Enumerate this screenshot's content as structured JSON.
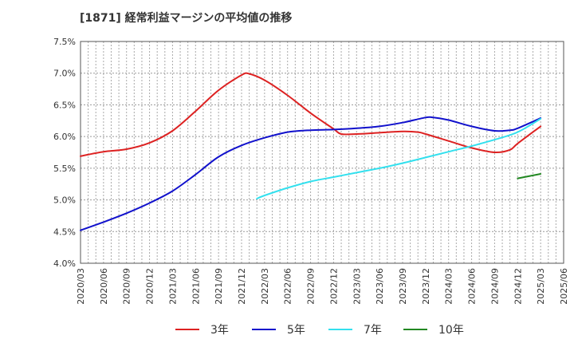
{
  "chart_data": {
    "type": "line",
    "title": "[1871]  経常利益マージンの平均値の推移",
    "xlabel": "",
    "ylabel": "",
    "ylim": [
      4.0,
      7.5
    ],
    "grid": true,
    "legend_placement": "bottom",
    "y_ticks": [
      "4.0%",
      "4.5%",
      "5.0%",
      "5.5%",
      "6.0%",
      "6.5%",
      "7.0%",
      "7.5%"
    ],
    "x_ticks": [
      "2020/03",
      "2020/06",
      "2020/09",
      "2020/12",
      "2021/03",
      "2021/06",
      "2021/09",
      "2021/12",
      "2022/03",
      "2022/06",
      "2022/09",
      "2022/12",
      "2023/03",
      "2023/06",
      "2023/09",
      "2023/12",
      "2024/03",
      "2024/06",
      "2024/09",
      "2024/12",
      "2025/03",
      "2025/06"
    ],
    "series": [
      {
        "name": "3年",
        "color": "#dd2222",
        "x": [
          "2020/03",
          "2020/06",
          "2020/09",
          "2020/12",
          "2021/03",
          "2021/06",
          "2021/09",
          "2021/12",
          "2022/01",
          "2022/03",
          "2022/06",
          "2022/09",
          "2022/12",
          "2023/01",
          "2023/03",
          "2023/06",
          "2023/09",
          "2023/11",
          "2023/12",
          "2024/03",
          "2024/06",
          "2024/09",
          "2024/11",
          "2024/12",
          "2025/03"
        ],
        "values": [
          5.69,
          5.76,
          5.8,
          5.9,
          6.09,
          6.4,
          6.73,
          6.97,
          6.99,
          6.89,
          6.65,
          6.37,
          6.12,
          6.04,
          6.04,
          6.06,
          6.08,
          6.07,
          6.04,
          5.93,
          5.82,
          5.75,
          5.79,
          5.89,
          6.16
        ]
      },
      {
        "name": "5年",
        "color": "#1111cc",
        "x": [
          "2020/03",
          "2020/06",
          "2020/09",
          "2020/12",
          "2021/03",
          "2021/06",
          "2021/09",
          "2021/12",
          "2022/03",
          "2022/06",
          "2022/09",
          "2022/12",
          "2023/03",
          "2023/06",
          "2023/09",
          "2023/12",
          "2024/01",
          "2024/03",
          "2024/06",
          "2024/09",
          "2024/11",
          "2024/12",
          "2025/03"
        ],
        "values": [
          4.52,
          4.65,
          4.79,
          4.95,
          5.14,
          5.4,
          5.68,
          5.86,
          5.98,
          6.07,
          6.1,
          6.11,
          6.13,
          6.16,
          6.22,
          6.3,
          6.3,
          6.26,
          6.16,
          6.09,
          6.1,
          6.13,
          6.29
        ]
      },
      {
        "name": "7年",
        "color": "#33e0ee",
        "x": [
          "2022/02",
          "2022/03",
          "2022/06",
          "2022/09",
          "2022/12",
          "2023/03",
          "2023/06",
          "2023/09",
          "2023/12",
          "2024/03",
          "2024/06",
          "2024/09",
          "2024/12",
          "2025/03"
        ],
        "values": [
          5.02,
          5.07,
          5.19,
          5.29,
          5.36,
          5.43,
          5.5,
          5.58,
          5.67,
          5.76,
          5.85,
          5.95,
          6.07,
          6.28
        ]
      },
      {
        "name": "10年",
        "color": "#228822",
        "x": [
          "2024/12",
          "2025/03"
        ],
        "values": [
          5.34,
          5.41
        ]
      }
    ]
  }
}
